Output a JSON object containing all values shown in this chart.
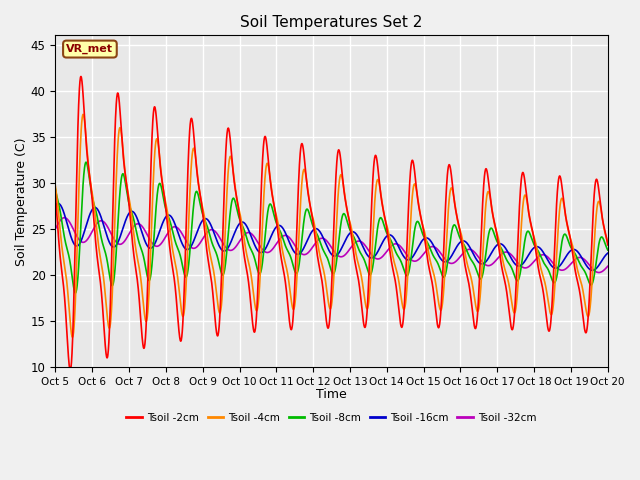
{
  "title": "Soil Temperatures Set 2",
  "xlabel": "Time",
  "ylabel": "Soil Temperature (C)",
  "ylim": [
    10,
    46
  ],
  "xlim": [
    0,
    15
  ],
  "xtick_labels": [
    "Oct 5",
    "Oct 6",
    "Oct 7",
    "Oct 8",
    "Oct 9",
    "Oct 10",
    "Oct 11",
    "Oct 12",
    "Oct 13",
    "Oct 14",
    "Oct 15",
    "Oct 16",
    "Oct 17",
    "Oct 18",
    "Oct 19",
    "Oct 20"
  ],
  "ytick_values": [
    10,
    15,
    20,
    25,
    30,
    35,
    40,
    45
  ],
  "series_colors": [
    "#ff0000",
    "#ff8800",
    "#00bb00",
    "#0000cc",
    "#bb00bb"
  ],
  "series_labels": [
    "Tsoil -2cm",
    "Tsoil -4cm",
    "Tsoil -8cm",
    "Tsoil -16cm",
    "Tsoil -32cm"
  ],
  "annotation_text": "VR_met",
  "background_color": "#e8e8e8",
  "fig_bg_color": "#f0f0f0"
}
